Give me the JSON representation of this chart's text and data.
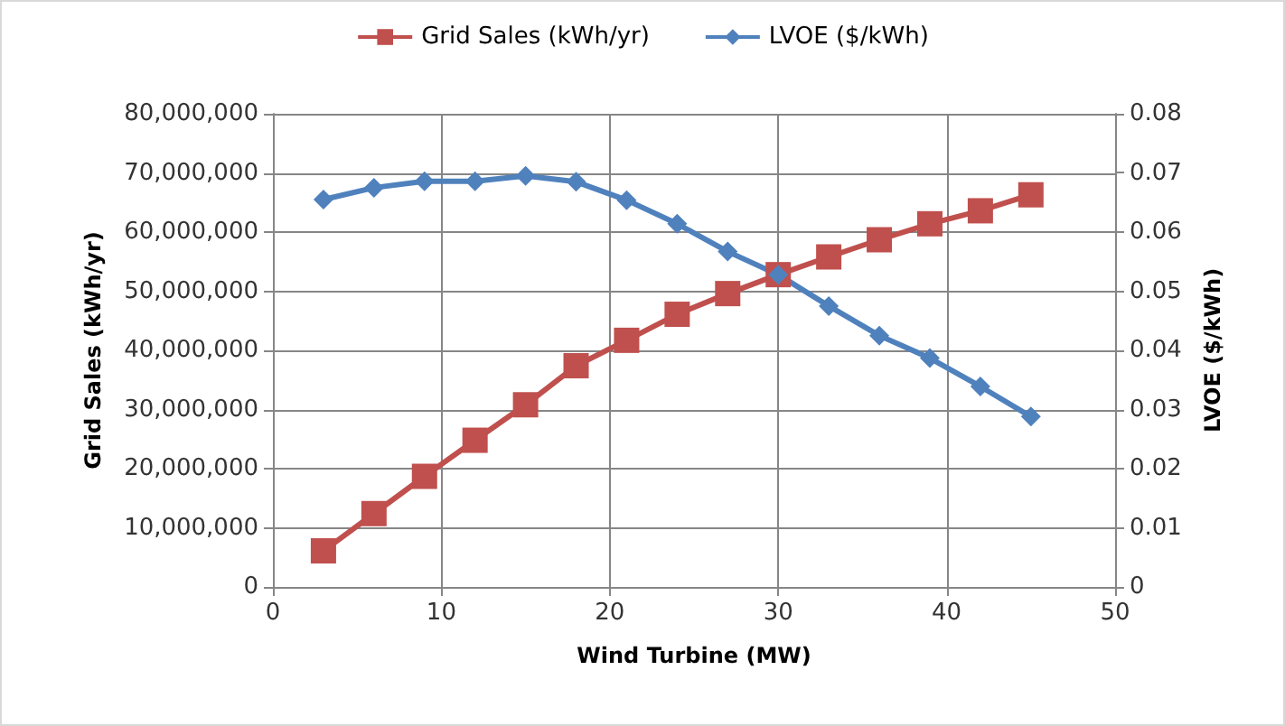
{
  "chart_data": {
    "type": "line",
    "xlabel": "Wind Turbine (MW)",
    "ylabel": "Grid Sales (kWh/yr)",
    "y2label": "LVOE ($/kWh)",
    "x": [
      3,
      6,
      9,
      12,
      15,
      18,
      21,
      24,
      27,
      30,
      33,
      36,
      39,
      42,
      45
    ],
    "series": [
      {
        "name": "Grid Sales (kWh/yr)",
        "color": "#c0504d",
        "marker": "square",
        "values": [
          6100000,
          12400000,
          18700000,
          24800000,
          30800000,
          37400000,
          41700000,
          46100000,
          49600000,
          52800000,
          55800000,
          58700000,
          61400000,
          63600000,
          66300000
        ]
      },
      {
        "name": "LVOE ($/kWh)",
        "color": "#4f81bd",
        "marker": "diamond",
        "axis": "y2",
        "values": [
          0.0655,
          0.0675,
          0.0686,
          0.0686,
          0.0695,
          0.0685,
          0.0654,
          0.0614,
          0.0567,
          0.0528,
          0.0475,
          0.0425,
          0.0387,
          0.0339,
          0.0288
        ]
      }
    ],
    "xlim": [
      0,
      50
    ],
    "xticks": [
      0,
      10,
      20,
      30,
      40,
      50
    ],
    "ylim": [
      0,
      80000000
    ],
    "yticks": [
      0,
      {
        "value": 10000000,
        "label": "10,000,000"
      },
      {
        "value": 20000000,
        "label": "20,000,000"
      },
      {
        "value": 30000000,
        "label": "30,000,000"
      },
      {
        "value": 40000000,
        "label": "40,000,000"
      },
      {
        "value": 50000000,
        "label": "50,000,000"
      },
      {
        "value": 60000000,
        "label": "60,000,000"
      },
      {
        "value": 70000000,
        "label": "70,000,000"
      },
      {
        "value": 80000000,
        "label": "80,000,000"
      }
    ],
    "y2lim": [
      0,
      0.08
    ],
    "y2ticks": [
      0,
      0.01,
      0.02,
      0.03,
      0.04,
      0.05,
      0.06,
      0.07,
      0.08
    ],
    "grid": true,
    "legend": "top"
  }
}
